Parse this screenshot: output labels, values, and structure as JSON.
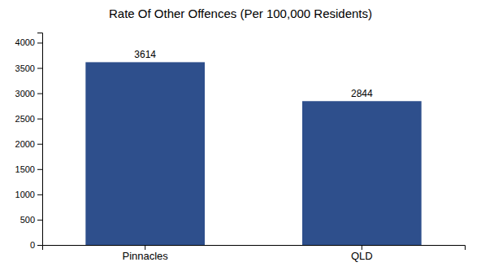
{
  "chart_data": {
    "type": "bar",
    "title": "Rate Of Other Offences (Per 100,000 Residents)",
    "categories": [
      "Pinnacles",
      "QLD"
    ],
    "values": [
      3614,
      2844
    ],
    "color": "#2e4f8c",
    "ylim": [
      0,
      4200
    ],
    "yticks": [
      0,
      500,
      1000,
      1500,
      2000,
      2500,
      3000,
      3500,
      4000
    ],
    "grid": false,
    "data_labels": true
  }
}
